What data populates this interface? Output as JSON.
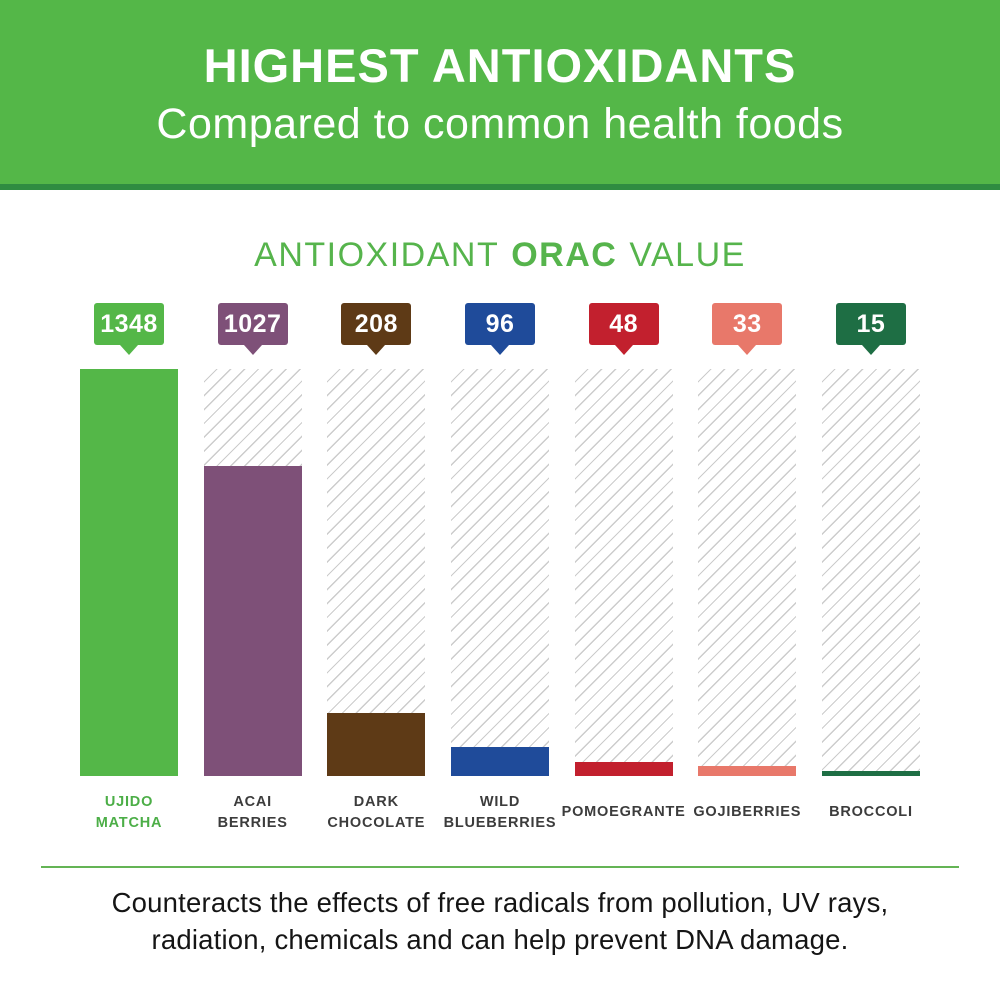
{
  "header": {
    "title": "HIGHEST ANTIOXIDANTS",
    "subtitle": "Compared to common health foods"
  },
  "chart_data": {
    "type": "bar",
    "title": "ANTIOXIDANT ORAC VALUE",
    "title_parts": [
      "ANTIOXIDANT",
      "ORAC",
      "VALUE"
    ],
    "categories": [
      "UJIDO MATCHA",
      "ACAI BERRIES",
      "DARK CHOCOLATE",
      "WILD BLUEBERRIES",
      "POMOEGRANTE",
      "GOJIBERRIES",
      "BROCCOLI"
    ],
    "values": [
      1348,
      1027,
      208,
      96,
      48,
      33,
      15
    ],
    "ylim": [
      0,
      1348
    ],
    "grid": false,
    "legend": "none",
    "value_label_style": "colored tag with pointer above each bar",
    "track_style": "light gray diagonal hatch placeholder behind each bar",
    "bars": [
      {
        "category": "UJIDO MATCHA",
        "label_lines": [
          "UJIDO",
          "MATCHA"
        ],
        "value": 1348,
        "value_label": "1348",
        "color": "#54b748",
        "highlighted": true
      },
      {
        "category": "ACAI BERRIES",
        "label_lines": [
          "ACAI",
          "BERRIES"
        ],
        "value": 1027,
        "value_label": "1027",
        "color": "#7e5078",
        "highlighted": false
      },
      {
        "category": "DARK CHOCOLATE",
        "label_lines": [
          "DARK",
          "CHOCOLATE"
        ],
        "value": 208,
        "value_label": "208",
        "color": "#5e3a16",
        "highlighted": false
      },
      {
        "category": "WILD BLUEBERRIES",
        "label_lines": [
          "WILD",
          "BLUEBERRIES"
        ],
        "value": 96,
        "value_label": "96",
        "color": "#1f4b9a",
        "highlighted": false
      },
      {
        "category": "POMOEGRANTE",
        "label_lines": [
          "POMOEGRANTE"
        ],
        "value": 48,
        "value_label": "48",
        "color": "#c2202e",
        "highlighted": false
      },
      {
        "category": "GOJIBERRIES",
        "label_lines": [
          "GOJIBERRIES"
        ],
        "value": 33,
        "value_label": "33",
        "color": "#e8786a",
        "highlighted": false
      },
      {
        "category": "BROCCOLI",
        "label_lines": [
          "BROCCOLI"
        ],
        "value": 15,
        "value_label": "15",
        "color": "#1e6e44",
        "highlighted": false
      }
    ]
  },
  "footer": {
    "line1": "Counteracts the effects of free radicals from pollution, UV rays,",
    "line2": "radiation, chemicals and can help prevent DNA damage.",
    "full_text": "Counteracts the effects of free radicals from pollution, UV rays, radiation, chemicals and can help prevent DNA damage."
  },
  "colors": {
    "banner_green": "#54b748",
    "banner_border_green": "#2f8c41",
    "title_green": "#56b44c",
    "divider_green": "#64b455",
    "hatch_gray": "#cccccc",
    "label_dark": "#3c3c3c",
    "footer_text": "#151515"
  }
}
